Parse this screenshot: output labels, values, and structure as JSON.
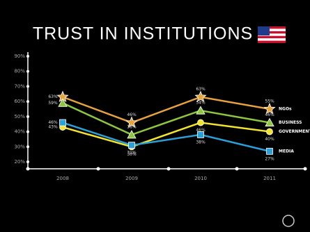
{
  "chart_data": {
    "type": "line",
    "title": "TRUST IN INSTITUTIONS",
    "categories": [
      "2008",
      "2009",
      "2010",
      "2011"
    ],
    "series": [
      {
        "name": "NGOs",
        "color": "#e8a33c",
        "marker": "star",
        "values": [
          63,
          46,
          63,
          55
        ],
        "value_labels": [
          "63%",
          "46%",
          "63%",
          "55%"
        ]
      },
      {
        "name": "BUSINESS",
        "color": "#8dc63f",
        "marker": "triangle",
        "values": [
          59,
          38,
          54,
          46
        ],
        "value_labels": [
          "59%",
          "38%",
          "54%",
          "46%"
        ]
      },
      {
        "name": "GOVERNMENT",
        "color": "#f2e32c",
        "marker": "circle",
        "values": [
          43,
          30,
          46,
          40
        ],
        "value_labels": [
          "43%",
          "30%",
          "46%",
          "40%"
        ]
      },
      {
        "name": "MEDIA",
        "color": "#2a9fd8",
        "marker": "square",
        "values": [
          46,
          31,
          38,
          27
        ],
        "value_labels": [
          "46%",
          "31%",
          "38%",
          "27%"
        ]
      }
    ],
    "ylim": [
      20,
      90
    ],
    "yticks": [
      {
        "value": 20,
        "label": "20%"
      },
      {
        "value": 30,
        "label": "30%"
      },
      {
        "value": 40,
        "label": "40%"
      },
      {
        "value": 50,
        "label": "50%"
      },
      {
        "value": 60,
        "label": "60%"
      },
      {
        "value": 70,
        "label": "70%"
      },
      {
        "value": 80,
        "label": "80%"
      },
      {
        "value": 90,
        "label": "90%"
      }
    ]
  }
}
